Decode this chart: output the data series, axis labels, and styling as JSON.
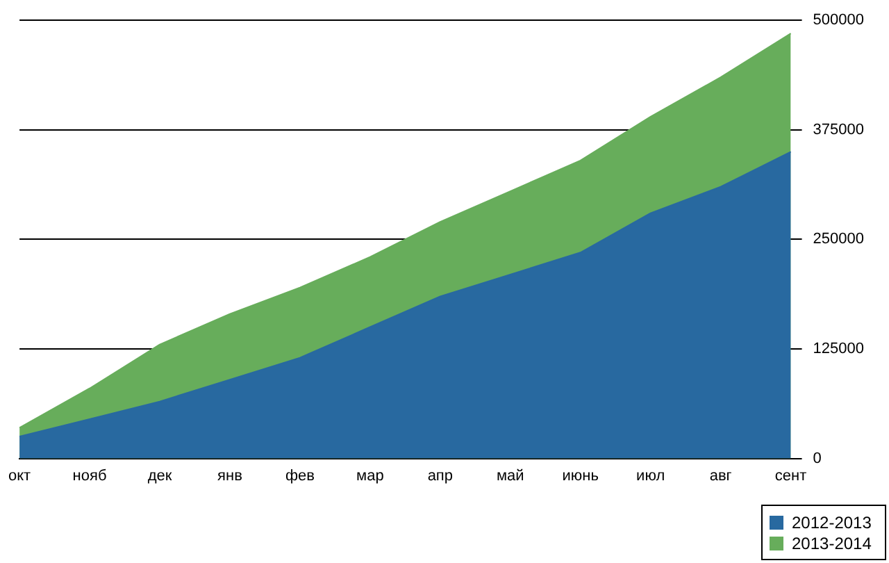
{
  "chart_data": {
    "type": "area",
    "categories": [
      "окт",
      "нояб",
      "дек",
      "янв",
      "фев",
      "мар",
      "апр",
      "май",
      "июнь",
      "июл",
      "авг",
      "сент"
    ],
    "series": [
      {
        "name": "2012-2013",
        "color": "#2869a0",
        "values": [
          25000,
          45000,
          65000,
          90000,
          115000,
          150000,
          185000,
          210000,
          235000,
          280000,
          310000,
          350000
        ]
      },
      {
        "name": "2013-2014",
        "color": "#67ad5b",
        "values": [
          35000,
          80000,
          130000,
          165000,
          195000,
          230000,
          270000,
          305000,
          340000,
          390000,
          435000,
          485000
        ]
      }
    ],
    "ylim": [
      0,
      500000
    ],
    "yticks": [
      0,
      125000,
      250000,
      375000,
      500000
    ],
    "grid": "y",
    "legend": "bottom right"
  }
}
